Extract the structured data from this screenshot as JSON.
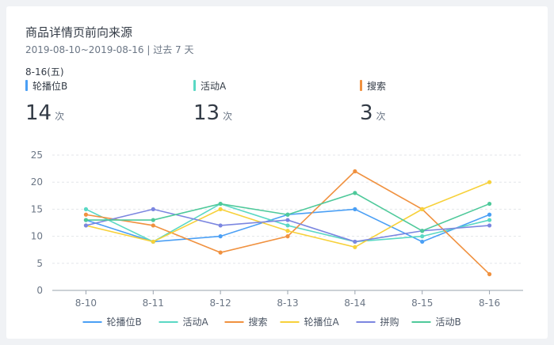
{
  "card": {
    "title": "商品详情页前向来源",
    "date_range": "2019-08-10~2019-08-16 | 过去 7 天",
    "selected_date": "8-16(五)"
  },
  "metrics": [
    {
      "name": "轮播位B",
      "value": "14",
      "unit": "次",
      "color": "#4a9ff5"
    },
    {
      "name": "活动A",
      "value": "13",
      "unit": "次",
      "color": "#5ad8c4"
    },
    {
      "name": "搜索",
      "value": "3",
      "unit": "次",
      "color": "#f0913f"
    }
  ],
  "chart_data": {
    "type": "line",
    "categories": [
      "8-10",
      "8-11",
      "8-12",
      "8-13",
      "8-14",
      "8-15",
      "8-16"
    ],
    "ylim": [
      0,
      25
    ],
    "yticks": [
      0,
      5,
      10,
      15,
      20,
      25
    ],
    "grid": true,
    "legend_position": "bottom",
    "series": [
      {
        "name": "轮播位B",
        "color": "#4a9ff5",
        "values": [
          13,
          9,
          10,
          14,
          15,
          9,
          14
        ]
      },
      {
        "name": "活动A",
        "color": "#5ad8c4",
        "values": [
          15,
          9,
          16,
          12,
          9,
          10,
          13
        ]
      },
      {
        "name": "搜索",
        "color": "#f0913f",
        "values": [
          14,
          12,
          7,
          10,
          22,
          15,
          3
        ]
      },
      {
        "name": "轮播位A",
        "color": "#f7d13a",
        "values": [
          12,
          9,
          15,
          11,
          8,
          15,
          20
        ]
      },
      {
        "name": "拼购",
        "color": "#7b86e0",
        "values": [
          12,
          15,
          12,
          13,
          9,
          11,
          12
        ]
      },
      {
        "name": "活动B",
        "color": "#4ec99a",
        "values": [
          13,
          13,
          16,
          14,
          18,
          11,
          16
        ]
      }
    ]
  }
}
